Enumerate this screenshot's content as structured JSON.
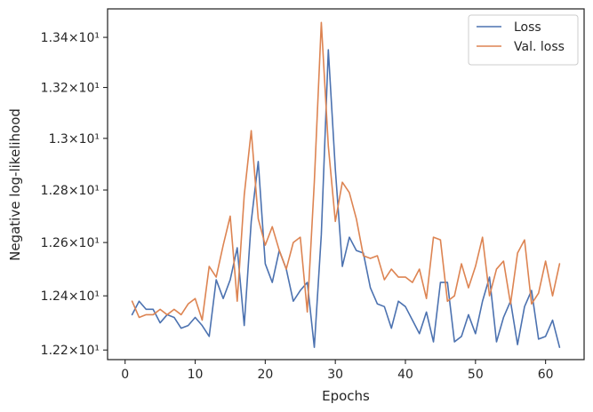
{
  "chart_data": {
    "type": "line",
    "title": "",
    "xlabel": "Epochs",
    "ylabel": "Negative log-likelihood",
    "xlim": [
      -2.5,
      65.5
    ],
    "ylim": [
      12.165,
      13.515
    ],
    "yscale": "log",
    "x_ticks": [
      0,
      10,
      20,
      30,
      40,
      50,
      60
    ],
    "x_tick_labels": [
      "0",
      "10",
      "20",
      "30",
      "40",
      "50",
      "60"
    ],
    "y_ticks": [
      12.2,
      12.4,
      12.6,
      12.8,
      13.0,
      13.2,
      13.4
    ],
    "y_tick_labels": [
      "1.22×10¹",
      "1.24×10¹",
      "1.26×10¹",
      "1.28×10¹",
      "1.3×10¹",
      "1.32×10¹",
      "1.34×10¹"
    ],
    "grid": false,
    "legend_position": "top-right",
    "x": [
      1,
      2,
      3,
      4,
      5,
      6,
      7,
      8,
      9,
      10,
      11,
      12,
      13,
      14,
      15,
      16,
      17,
      18,
      19,
      20,
      21,
      22,
      23,
      24,
      25,
      26,
      27,
      28,
      29,
      30,
      31,
      32,
      33,
      34,
      35,
      36,
      37,
      38,
      39,
      40,
      41,
      42,
      43,
      44,
      45,
      46,
      47,
      48,
      49,
      50,
      51,
      52,
      53,
      54,
      55,
      56,
      57,
      58,
      59,
      60,
      61,
      62
    ],
    "series": [
      {
        "name": "Loss",
        "color": "#4c72b0",
        "values": [
          12.33,
          12.38,
          12.35,
          12.35,
          12.3,
          12.33,
          12.32,
          12.28,
          12.29,
          12.32,
          12.29,
          12.25,
          12.46,
          12.39,
          12.46,
          12.58,
          12.29,
          12.68,
          12.91,
          12.52,
          12.45,
          12.57,
          12.5,
          12.38,
          12.42,
          12.45,
          12.21,
          12.63,
          13.35,
          12.88,
          12.51,
          12.62,
          12.57,
          12.56,
          12.43,
          12.37,
          12.36,
          12.28,
          12.38,
          12.36,
          12.31,
          12.26,
          12.34,
          12.23,
          12.45,
          12.45,
          12.23,
          12.25,
          12.33,
          12.26,
          12.38,
          12.47,
          12.23,
          12.32,
          12.38,
          12.22,
          12.36,
          12.42,
          12.24,
          12.25,
          12.31,
          12.21
        ]
      },
      {
        "name": "Val. loss",
        "color": "#dd8452",
        "values": [
          12.38,
          12.32,
          12.33,
          12.33,
          12.35,
          12.33,
          12.35,
          12.33,
          12.37,
          12.39,
          12.31,
          12.51,
          12.47,
          12.59,
          12.7,
          12.38,
          12.78,
          13.03,
          12.69,
          12.59,
          12.66,
          12.57,
          12.5,
          12.6,
          12.62,
          12.34,
          12.83,
          13.46,
          12.97,
          12.68,
          12.83,
          12.79,
          12.69,
          12.55,
          12.54,
          12.55,
          12.46,
          12.5,
          12.47,
          12.47,
          12.45,
          12.5,
          12.39,
          12.62,
          12.61,
          12.38,
          12.4,
          12.52,
          12.43,
          12.51,
          12.62,
          12.4,
          12.5,
          12.53,
          12.37,
          12.56,
          12.61,
          12.37,
          12.41,
          12.53,
          12.4,
          12.52
        ]
      }
    ]
  }
}
